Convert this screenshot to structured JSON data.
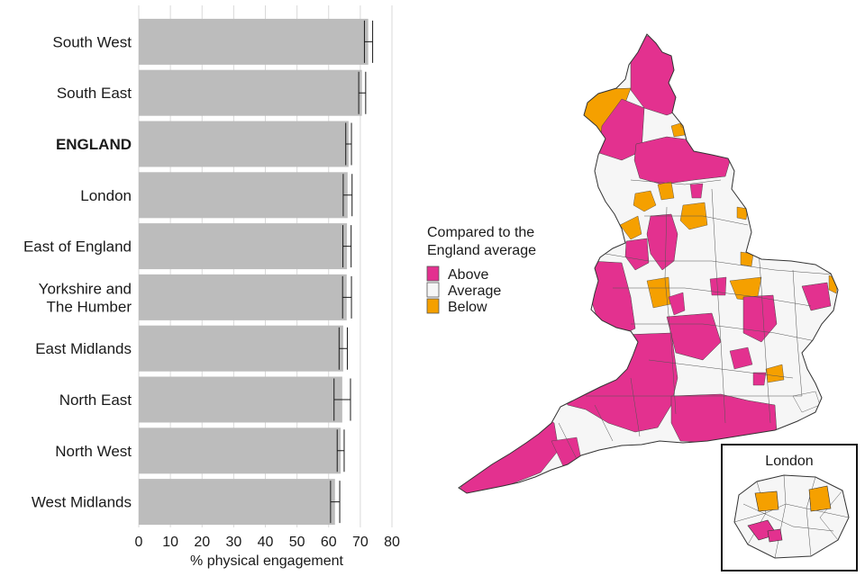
{
  "chart_data": {
    "type": "bar",
    "orientation": "horizontal",
    "categories": [
      "South West",
      "South East",
      "ENGLAND",
      "London",
      "East of England",
      "Yorkshire and The Humber",
      "East Midlands",
      "North East",
      "North West",
      "West Midlands"
    ],
    "category_lines": [
      [
        "South West"
      ],
      [
        "South East"
      ],
      [
        "ENGLAND"
      ],
      [
        "London"
      ],
      [
        "East of England"
      ],
      [
        "Yorkshire and",
        "The Humber"
      ],
      [
        "East Midlands"
      ],
      [
        "North East"
      ],
      [
        "North West"
      ],
      [
        "West Midlands"
      ]
    ],
    "bold_category": "ENGLAND",
    "values": [
      72.5,
      70.5,
      66.3,
      66.0,
      65.8,
      65.7,
      64.6,
      64.3,
      63.8,
      62.0
    ],
    "ci_low": [
      71.3,
      69.5,
      65.4,
      64.6,
      64.5,
      64.4,
      63.3,
      61.7,
      62.7,
      60.6
    ],
    "ci_high": [
      73.9,
      71.7,
      67.2,
      67.4,
      67.1,
      67.2,
      65.9,
      66.9,
      64.9,
      63.5
    ],
    "xlabel": "% physical engagement",
    "xlim": [
      0,
      80
    ],
    "xticks": [
      0,
      10,
      20,
      30,
      40,
      50,
      60,
      70,
      80
    ],
    "bar_color": "#bcbcbc",
    "grid": "vertical"
  },
  "legend": {
    "title_lines": [
      "Compared to the",
      "England average"
    ],
    "items": [
      {
        "label": "Above",
        "color": "#e3318f"
      },
      {
        "label": "Average",
        "color": "#f6f6f6"
      },
      {
        "label": "Below",
        "color": "#f5a000"
      }
    ]
  },
  "inset": {
    "title": "London"
  },
  "map_colors": {
    "above": "#e3318f",
    "average": "#f6f6f6",
    "below": "#f5a000",
    "border": "#555555"
  }
}
